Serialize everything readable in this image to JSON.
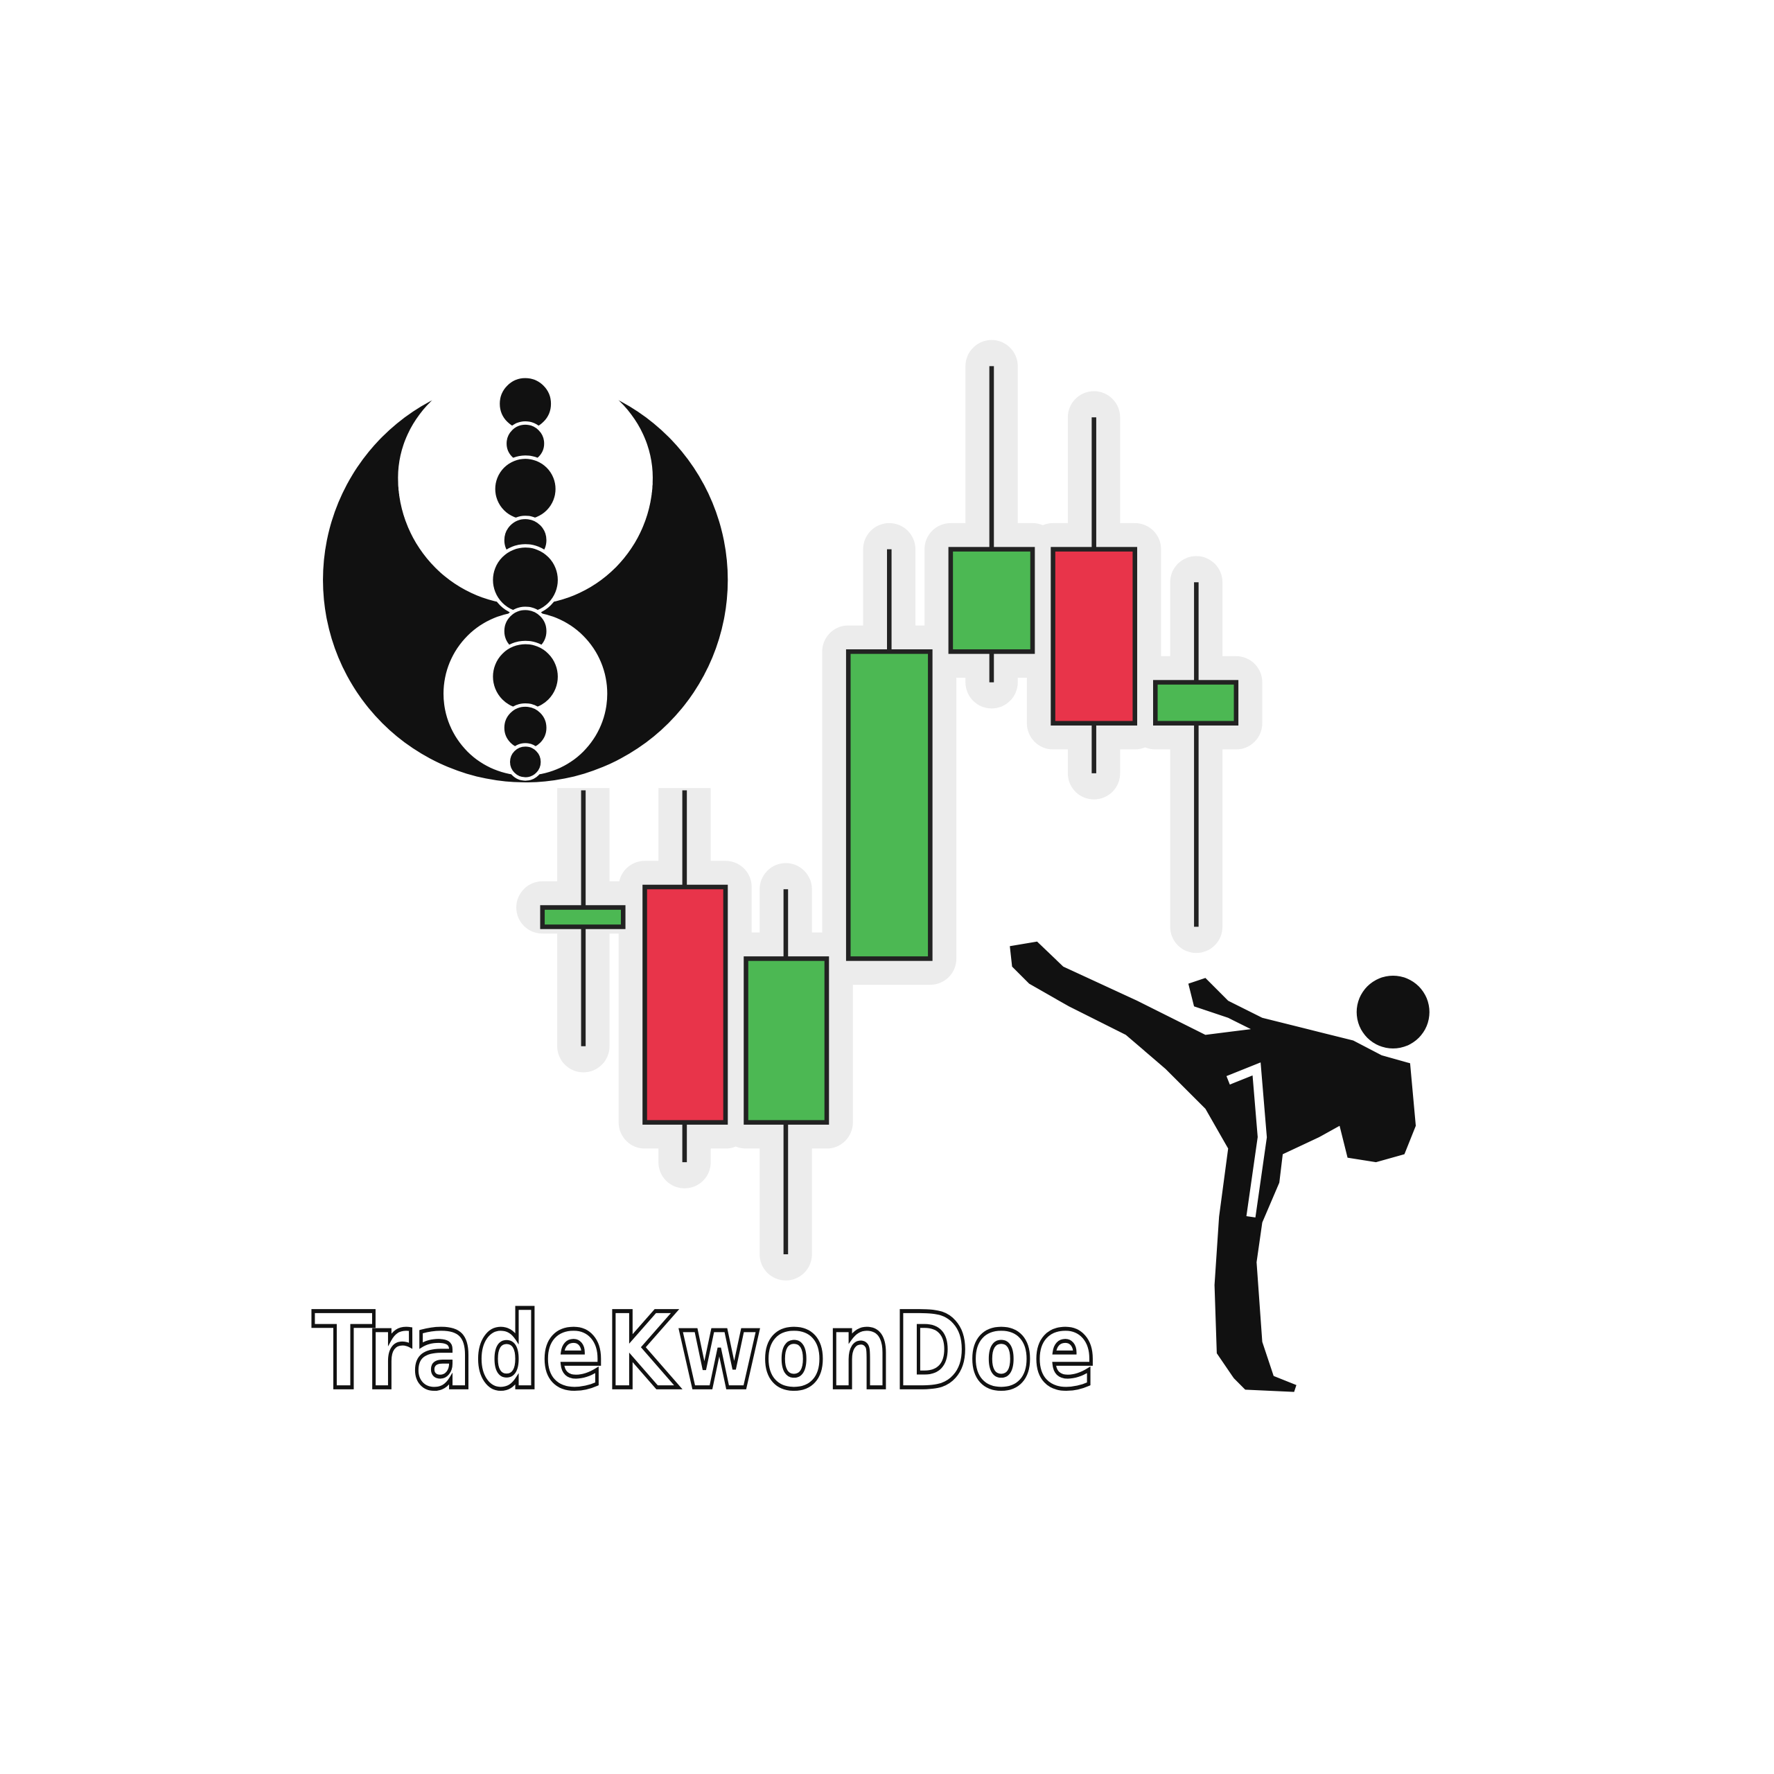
{
  "logo": {
    "text": "TradeKwonDoe"
  }
}
